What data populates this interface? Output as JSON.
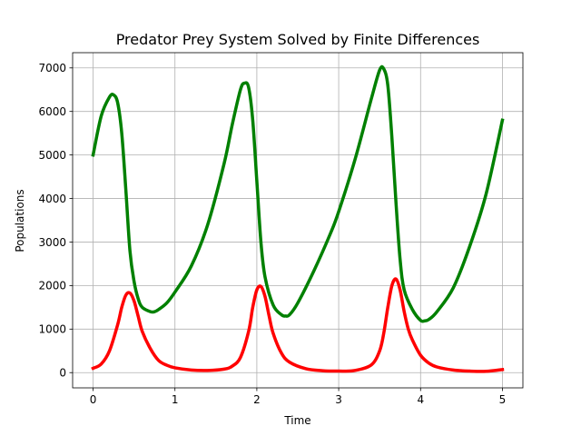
{
  "chart_data": {
    "type": "line",
    "title": "Predator Prey System Solved by Finite Differences",
    "xlabel": "Time",
    "ylabel": "Populations",
    "xlim": [
      -0.25,
      5.25
    ],
    "ylim": [
      -350,
      7350
    ],
    "xticks": [
      0,
      1,
      2,
      3,
      4,
      5
    ],
    "yticks": [
      0,
      1000,
      2000,
      3000,
      4000,
      5000,
      6000,
      7000
    ],
    "grid": true,
    "series": [
      {
        "color": "#008000",
        "x": [
          0,
          0.1,
          0.2,
          0.25,
          0.3,
          0.35,
          0.4,
          0.45,
          0.5,
          0.55,
          0.6,
          0.7,
          0.75,
          0.8,
          0.9,
          1.0,
          1.2,
          1.4,
          1.6,
          1.7,
          1.8,
          1.85,
          1.9,
          1.95,
          2.0,
          2.05,
          2.1,
          2.2,
          2.3,
          2.35,
          2.4,
          2.5,
          2.7,
          2.9,
          3.0,
          3.2,
          3.4,
          3.5,
          3.55,
          3.6,
          3.65,
          3.7,
          3.75,
          3.8,
          3.9,
          4.0,
          4.05,
          4.1,
          4.2,
          4.4,
          4.6,
          4.8,
          5.0
        ],
        "y": [
          5000,
          5900,
          6330,
          6380,
          6200,
          5500,
          4200,
          2800,
          2100,
          1700,
          1500,
          1400,
          1400,
          1450,
          1600,
          1850,
          2450,
          3400,
          4800,
          5700,
          6500,
          6650,
          6550,
          5800,
          4400,
          3000,
          2200,
          1550,
          1330,
          1300,
          1330,
          1600,
          2350,
          3200,
          3700,
          4900,
          6300,
          6950,
          6980,
          6600,
          5400,
          3900,
          2600,
          1900,
          1450,
          1200,
          1190,
          1220,
          1400,
          1950,
          2900,
          4100,
          5800
        ]
      },
      {
        "color": "#ff0000",
        "x": [
          0,
          0.1,
          0.2,
          0.3,
          0.35,
          0.4,
          0.45,
          0.5,
          0.55,
          0.6,
          0.7,
          0.8,
          0.9,
          1.0,
          1.2,
          1.4,
          1.6,
          1.7,
          1.8,
          1.9,
          1.95,
          2.0,
          2.05,
          2.1,
          2.15,
          2.2,
          2.3,
          2.4,
          2.6,
          2.8,
          3.0,
          3.2,
          3.4,
          3.5,
          3.55,
          3.6,
          3.65,
          3.7,
          3.75,
          3.8,
          3.85,
          3.9,
          4.0,
          4.1,
          4.2,
          4.4,
          4.6,
          4.8,
          5.0
        ],
        "y": [
          100,
          200,
          500,
          1100,
          1500,
          1780,
          1830,
          1650,
          1300,
          950,
          550,
          280,
          170,
          110,
          60,
          50,
          80,
          150,
          350,
          950,
          1500,
          1900,
          1980,
          1750,
          1300,
          900,
          450,
          240,
          90,
          45,
          35,
          50,
          180,
          500,
          900,
          1500,
          2000,
          2150,
          1900,
          1400,
          1000,
          750,
          400,
          220,
          130,
          60,
          35,
          30,
          70
        ]
      }
    ]
  }
}
